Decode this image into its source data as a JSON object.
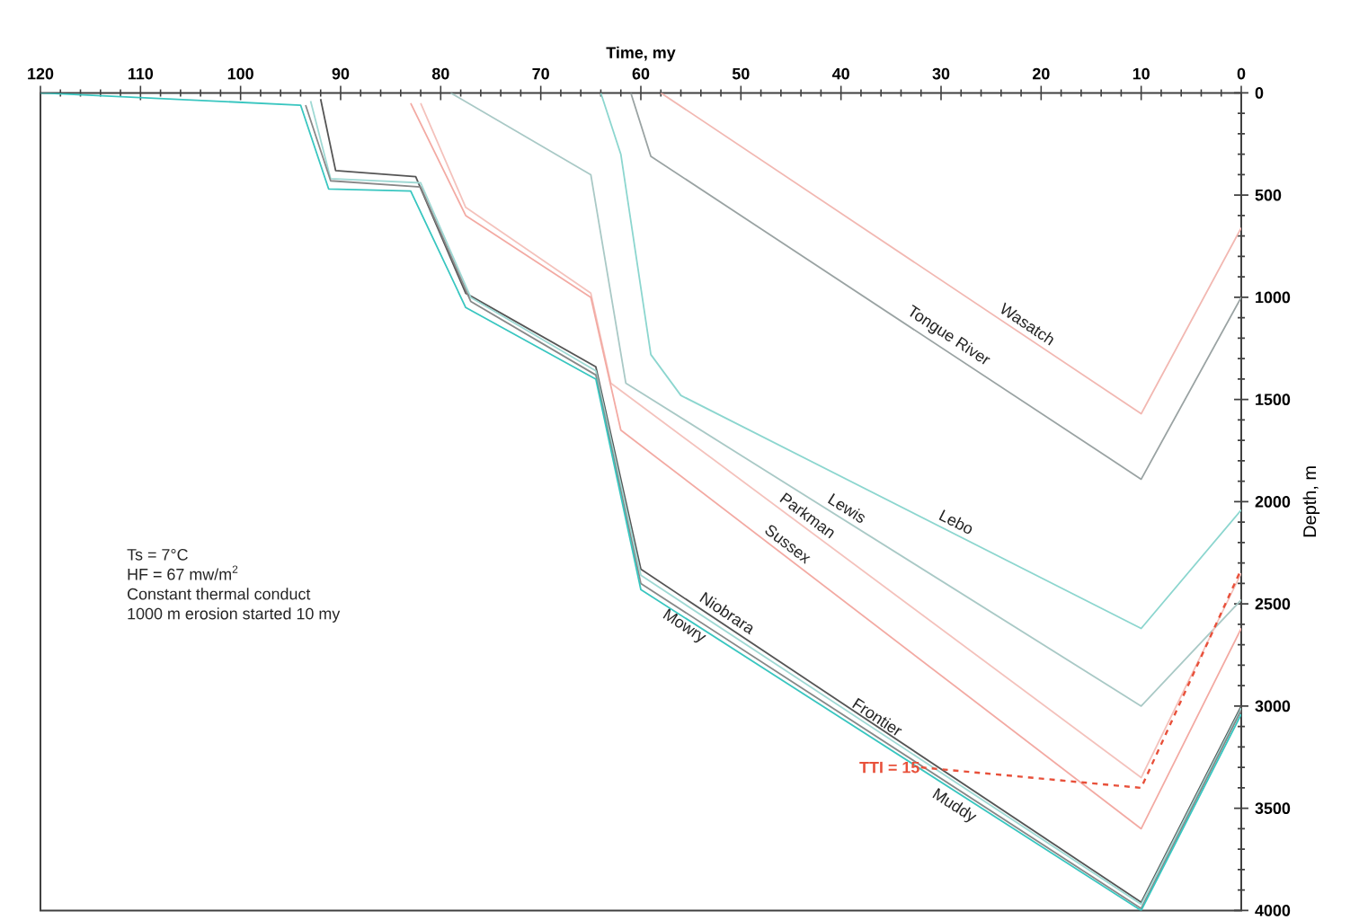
{
  "chart_data": {
    "type": "line",
    "xlabel": "Time, my",
    "ylabel": "Depth, m",
    "xlim": [
      120,
      0
    ],
    "ylim": [
      4000,
      0
    ],
    "xticks": [
      120,
      110,
      100,
      90,
      80,
      70,
      60,
      50,
      40,
      30,
      20,
      10,
      0
    ],
    "yticks": [
      0,
      500,
      1000,
      1500,
      2000,
      2500,
      3000,
      3500,
      4000
    ],
    "series": [
      {
        "name": "Wasatch",
        "color": "#f2b8b2",
        "x": [
          58,
          10,
          0
        ],
        "values": [
          0,
          1570,
          660
        ]
      },
      {
        "name": "Tongue River",
        "color": "#9aa3a3",
        "x": [
          61,
          59,
          10,
          0
        ],
        "values": [
          0,
          310,
          1890,
          1000
        ]
      },
      {
        "name": "Lebo",
        "color": "#8cd6cf",
        "x": [
          64,
          62,
          59,
          56,
          10,
          0
        ],
        "values": [
          0,
          300,
          1280,
          1480,
          2620,
          2040
        ]
      },
      {
        "name": "Lewis",
        "color": "#a9c9c6",
        "x": [
          79,
          65,
          61.5,
          10,
          0
        ],
        "values": [
          0,
          400,
          1420,
          3000,
          2480
        ]
      },
      {
        "name": "Parkman",
        "color": "#f4c2bc",
        "x": [
          82,
          77.5,
          65,
          63,
          10,
          0
        ],
        "values": [
          50,
          560,
          980,
          1420,
          3350,
          2350
        ]
      },
      {
        "name": "Sussex",
        "color": "#f3aaa3",
        "x": [
          83,
          77.5,
          65,
          62,
          10,
          0
        ],
        "values": [
          50,
          600,
          1000,
          1650,
          3600,
          2620
        ]
      },
      {
        "name": "Niobrara",
        "color": "#555555",
        "x": [
          92,
          90.5,
          82.5,
          77.5,
          64.5,
          60,
          10,
          0
        ],
        "values": [
          30,
          380,
          410,
          980,
          1340,
          2330,
          3960,
          3000
        ]
      },
      {
        "name": "Frontier",
        "color": "#9fd9d4",
        "x": [
          93,
          91,
          82,
          77,
          64.5,
          60,
          10,
          0
        ],
        "values": [
          40,
          420,
          440,
          1000,
          1360,
          2360,
          3970,
          3010
        ]
      },
      {
        "name": "Mowry",
        "color": "#888888",
        "x": [
          93.5,
          91,
          82,
          77,
          64.5,
          60,
          10,
          0
        ],
        "values": [
          60,
          430,
          460,
          1020,
          1380,
          2400,
          3990,
          3020
        ]
      },
      {
        "name": "Muddy",
        "color": "#39c6c0",
        "x": [
          120,
          94,
          91.2,
          83,
          77.5,
          64.5,
          60,
          10,
          0
        ],
        "values": [
          0,
          60,
          470,
          480,
          1050,
          1400,
          2430,
          4000,
          3040
        ]
      },
      {
        "name": "TTI = 15",
        "color": "#e8503a",
        "line_style": "dashed",
        "x": [
          32,
          10,
          0
        ],
        "values": [
          3300,
          3400,
          2330
        ]
      }
    ],
    "annotations": [
      "Ts = 7°C",
      "HF = 67 mw/m$^{2}$",
      "Constant thermal conduct",
      "1000 m erosion started 10 my"
    ]
  }
}
